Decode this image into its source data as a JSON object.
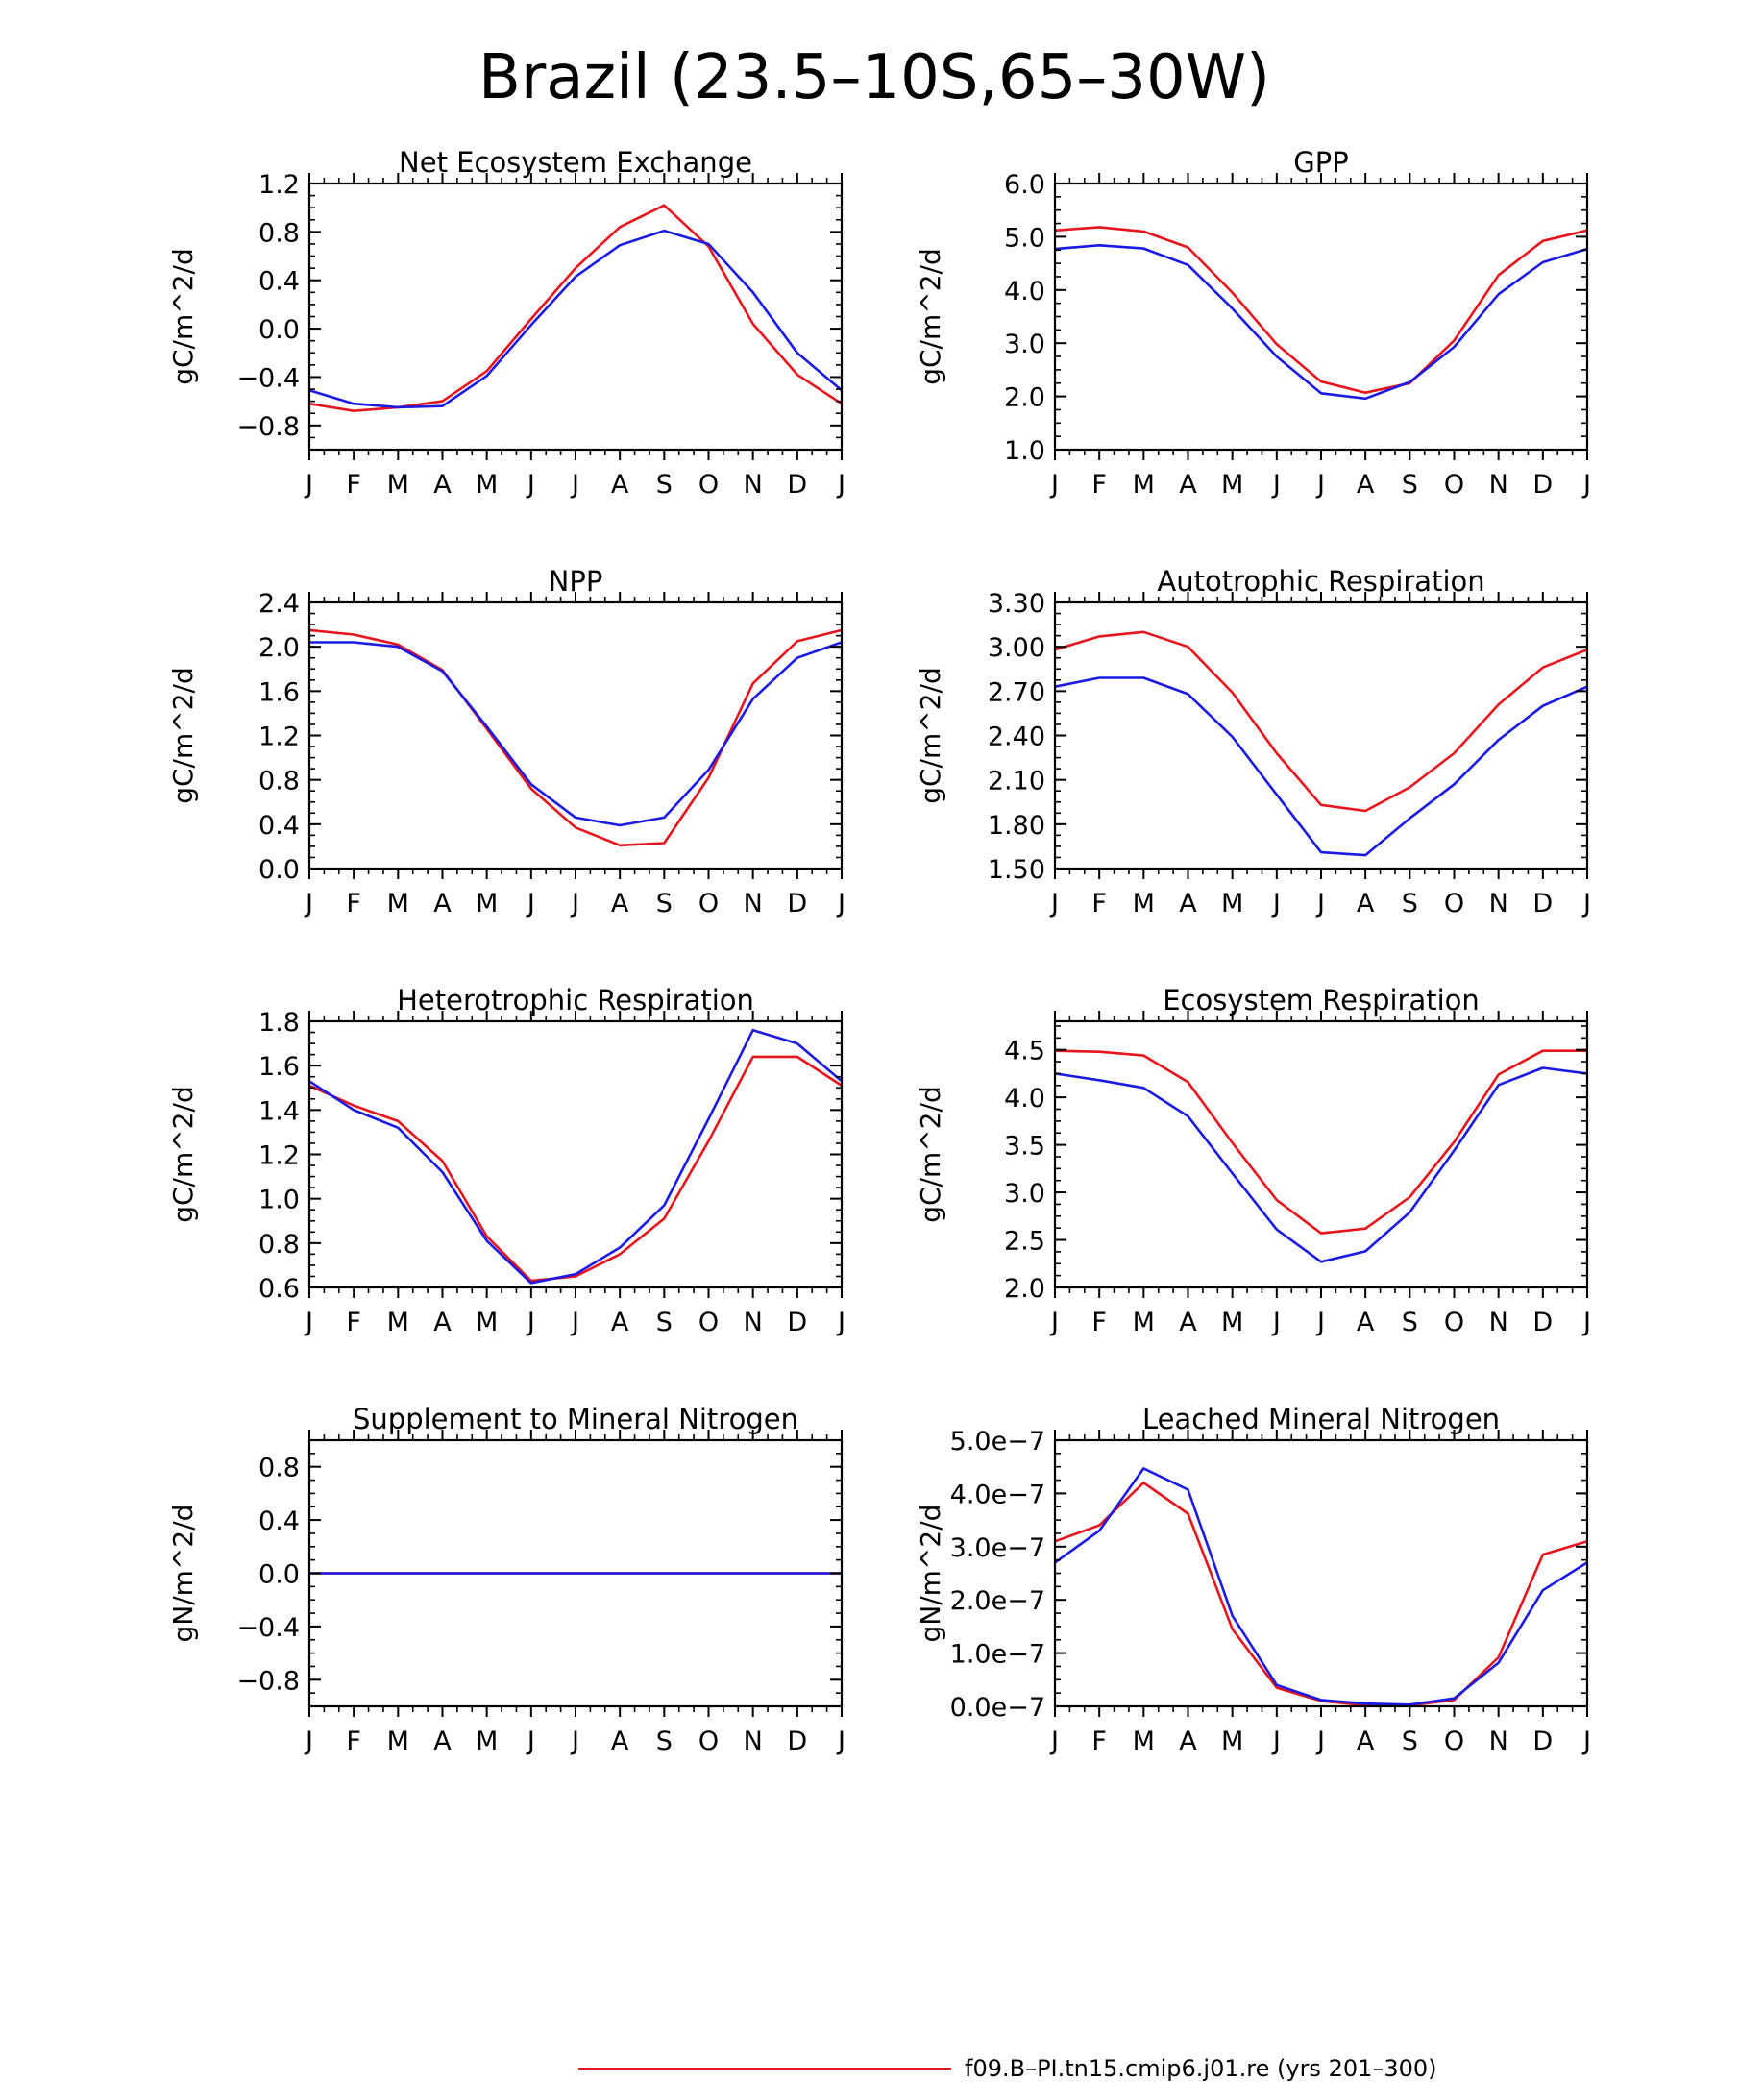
{
  "figure": {
    "title": "Brazil (23.5–10S,65–30W)"
  },
  "legend": {
    "entries": [
      {
        "label": "f09.B–PI.tn15.cmip6.j01.re (yrs 201–300)",
        "color": "#e8141c"
      }
    ]
  },
  "colors": {
    "red": "#e8141c",
    "blue": "#1a1ae6"
  },
  "chart_data": [
    {
      "type": "line",
      "title": "Net Ecosystem Exchange",
      "xlabel": "",
      "ylabel": "gC/m^2/d",
      "categories": [
        "J",
        "F",
        "M",
        "A",
        "M",
        "J",
        "J",
        "A",
        "S",
        "O",
        "N",
        "D",
        "J"
      ],
      "ylim": [
        -1.0,
        1.2
      ],
      "yticks": [
        -0.8,
        -0.4,
        0.0,
        0.4,
        0.8,
        1.2
      ],
      "ytick_labels": [
        "−0.8",
        "−0.4",
        "0.0",
        "0.4",
        "0.8",
        "1.2"
      ],
      "series": [
        {
          "color": "#e8141c",
          "values": [
            -0.62,
            -0.68,
            -0.65,
            -0.6,
            -0.35,
            0.08,
            0.5,
            0.84,
            1.02,
            0.68,
            0.04,
            -0.38,
            -0.62
          ]
        },
        {
          "color": "#1a1ae6",
          "values": [
            -0.51,
            -0.62,
            -0.65,
            -0.64,
            -0.39,
            0.03,
            0.43,
            0.69,
            0.81,
            0.7,
            0.3,
            -0.2,
            -0.51
          ]
        }
      ]
    },
    {
      "type": "line",
      "title": "GPP",
      "xlabel": "",
      "ylabel": "gC/m^2/d",
      "categories": [
        "J",
        "F",
        "M",
        "A",
        "M",
        "J",
        "J",
        "A",
        "S",
        "O",
        "N",
        "D",
        "J"
      ],
      "ylim": [
        1.0,
        6.0
      ],
      "yticks": [
        1.0,
        2.0,
        3.0,
        4.0,
        5.0,
        6.0
      ],
      "ytick_labels": [
        "1.0",
        "2.0",
        "3.0",
        "4.0",
        "5.0",
        "6.0"
      ],
      "series": [
        {
          "color": "#e8141c",
          "values": [
            5.12,
            5.18,
            5.1,
            4.8,
            3.95,
            2.98,
            2.28,
            2.07,
            2.25,
            3.05,
            4.28,
            4.92,
            5.12
          ]
        },
        {
          "color": "#1a1ae6",
          "values": [
            4.77,
            4.84,
            4.78,
            4.47,
            3.65,
            2.75,
            2.06,
            1.96,
            2.27,
            2.93,
            3.92,
            4.52,
            4.77
          ]
        }
      ]
    },
    {
      "type": "line",
      "title": "NPP",
      "xlabel": "",
      "ylabel": "gC/m^2/d",
      "categories": [
        "J",
        "F",
        "M",
        "A",
        "M",
        "J",
        "J",
        "A",
        "S",
        "O",
        "N",
        "D",
        "J"
      ],
      "ylim": [
        0.0,
        2.4
      ],
      "yticks": [
        0.0,
        0.4,
        0.8,
        1.2,
        1.6,
        2.0,
        2.4
      ],
      "ytick_labels": [
        "0.0",
        "0.4",
        "0.8",
        "1.2",
        "1.6",
        "2.0",
        "2.4"
      ],
      "series": [
        {
          "color": "#e8141c",
          "values": [
            2.15,
            2.11,
            2.02,
            1.79,
            1.26,
            0.72,
            0.37,
            0.21,
            0.23,
            0.82,
            1.67,
            2.05,
            2.15
          ]
        },
        {
          "color": "#1a1ae6",
          "values": [
            2.04,
            2.04,
            2.0,
            1.78,
            1.28,
            0.76,
            0.46,
            0.39,
            0.46,
            0.89,
            1.53,
            1.9,
            2.04
          ]
        }
      ]
    },
    {
      "type": "line",
      "title": "Autotrophic Respiration",
      "xlabel": "",
      "ylabel": "gC/m^2/d",
      "categories": [
        "J",
        "F",
        "M",
        "A",
        "M",
        "J",
        "J",
        "A",
        "S",
        "O",
        "N",
        "D",
        "J"
      ],
      "ylim": [
        1.5,
        3.3
      ],
      "yticks": [
        1.5,
        1.8,
        2.1,
        2.4,
        2.7,
        3.0,
        3.3
      ],
      "ytick_labels": [
        "1.50",
        "1.80",
        "2.10",
        "2.40",
        "2.70",
        "3.00",
        "3.30"
      ],
      "series": [
        {
          "color": "#e8141c",
          "values": [
            2.98,
            3.07,
            3.1,
            3.0,
            2.69,
            2.28,
            1.93,
            1.89,
            2.05,
            2.28,
            2.61,
            2.86,
            2.98
          ]
        },
        {
          "color": "#1a1ae6",
          "values": [
            2.73,
            2.79,
            2.79,
            2.68,
            2.39,
            2.0,
            1.61,
            1.59,
            1.84,
            2.07,
            2.37,
            2.6,
            2.73
          ]
        }
      ]
    },
    {
      "type": "line",
      "title": "Heterotrophic Respiration",
      "xlabel": "",
      "ylabel": "gC/m^2/d",
      "categories": [
        "J",
        "F",
        "M",
        "A",
        "M",
        "J",
        "J",
        "A",
        "S",
        "O",
        "N",
        "D",
        "J"
      ],
      "ylim": [
        0.6,
        1.8
      ],
      "yticks": [
        0.6,
        0.8,
        1.0,
        1.2,
        1.4,
        1.6,
        1.8
      ],
      "ytick_labels": [
        "0.6",
        "0.8",
        "1.0",
        "1.2",
        "1.4",
        "1.6",
        "1.8"
      ],
      "series": [
        {
          "color": "#e8141c",
          "values": [
            1.51,
            1.42,
            1.35,
            1.17,
            0.83,
            0.63,
            0.65,
            0.75,
            0.91,
            1.26,
            1.64,
            1.64,
            1.51
          ]
        },
        {
          "color": "#1a1ae6",
          "values": [
            1.53,
            1.4,
            1.32,
            1.12,
            0.81,
            0.62,
            0.66,
            0.78,
            0.97,
            1.36,
            1.76,
            1.7,
            1.53
          ]
        }
      ]
    },
    {
      "type": "line",
      "title": "Ecosystem Respiration",
      "xlabel": "",
      "ylabel": "gC/m^2/d",
      "categories": [
        "J",
        "F",
        "M",
        "A",
        "M",
        "J",
        "J",
        "A",
        "S",
        "O",
        "N",
        "D",
        "J"
      ],
      "ylim": [
        2.0,
        4.8
      ],
      "yticks": [
        2.0,
        2.5,
        3.0,
        3.5,
        4.0,
        4.5
      ],
      "ytick_labels": [
        "2.0",
        "2.5",
        "3.0",
        "3.5",
        "4.0",
        "4.5"
      ],
      "series": [
        {
          "color": "#e8141c",
          "values": [
            4.49,
            4.48,
            4.44,
            4.16,
            3.52,
            2.92,
            2.57,
            2.62,
            2.95,
            3.53,
            4.24,
            4.49,
            4.49
          ]
        },
        {
          "color": "#1a1ae6",
          "values": [
            4.25,
            4.18,
            4.1,
            3.8,
            3.2,
            2.61,
            2.27,
            2.38,
            2.79,
            3.44,
            4.13,
            4.31,
            4.25
          ]
        }
      ]
    },
    {
      "type": "line",
      "title": "Supplement to Mineral Nitrogen",
      "xlabel": "",
      "ylabel": "gN/m^2/d",
      "categories": [
        "J",
        "F",
        "M",
        "A",
        "M",
        "J",
        "J",
        "A",
        "S",
        "O",
        "N",
        "D",
        "J"
      ],
      "ylim": [
        -1.0,
        1.0
      ],
      "yticks": [
        -0.8,
        -0.4,
        0.0,
        0.4,
        0.8
      ],
      "ytick_labels": [
        "−0.8",
        "−0.4",
        "0.0",
        "0.4",
        "0.8"
      ],
      "series": [
        {
          "color": "#e8141c",
          "values": [
            0,
            0,
            0,
            0,
            0,
            0,
            0,
            0,
            0,
            0,
            0,
            0,
            0
          ]
        },
        {
          "color": "#1a1ae6",
          "values": [
            0,
            0,
            0,
            0,
            0,
            0,
            0,
            0,
            0,
            0,
            0,
            0,
            0
          ]
        }
      ]
    },
    {
      "type": "line",
      "title": "Leached Mineral Nitrogen",
      "xlabel": "",
      "ylabel": "gN/m^2/d",
      "categories": [
        "J",
        "F",
        "M",
        "A",
        "M",
        "J",
        "J",
        "A",
        "S",
        "O",
        "N",
        "D",
        "J"
      ],
      "ylim": [
        0.0,
        5e-07
      ],
      "yticks": [
        0.0,
        1e-07,
        2e-07,
        3e-07,
        4e-07,
        5e-07
      ],
      "ytick_labels": [
        "0.0e−7",
        "1.0e−7",
        "2.0e−7",
        "3.0e−7",
        "4.0e−7",
        "5.0e−7"
      ],
      "series": [
        {
          "color": "#e8141c",
          "values": [
            3.1e-07,
            3.4e-07,
            4.2e-07,
            3.62e-07,
            1.45e-07,
            3.5e-08,
            1e-08,
            2e-09,
            2e-09,
            1.2e-08,
            9.2e-08,
            2.85e-07,
            3.1e-07
          ]
        },
        {
          "color": "#1a1ae6",
          "values": [
            2.7e-07,
            3.3e-07,
            4.47e-07,
            4.07e-07,
            1.7e-07,
            4e-08,
            1.2e-08,
            5e-09,
            3e-09,
            1.5e-08,
            8.2e-08,
            2.18e-07,
            2.7e-07
          ]
        }
      ]
    }
  ]
}
